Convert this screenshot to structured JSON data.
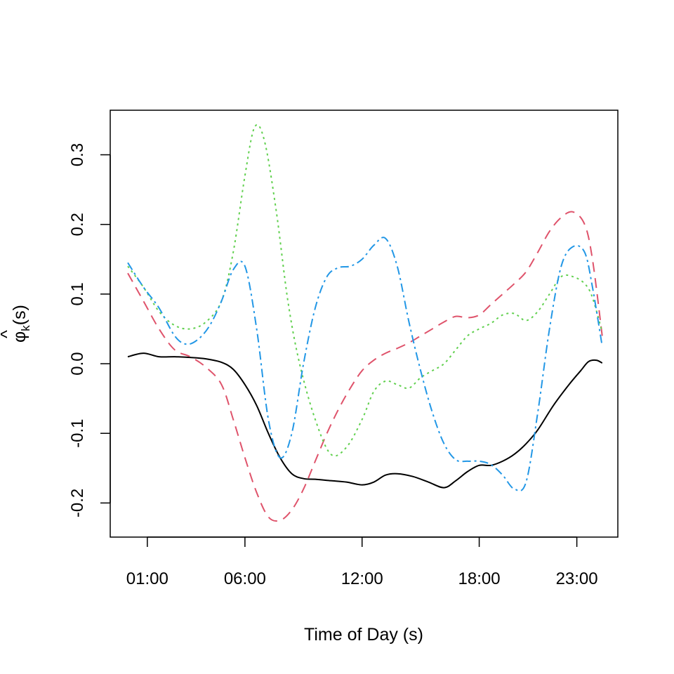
{
  "chart_data": {
    "type": "line",
    "xlabel": "Time of Day (s)",
    "ylabel_symbol": "φ",
    "ylabel_hat": "^",
    "ylabel_subscript": "k",
    "ylabel_suffix": "(s)",
    "xlim": [
      -0.9,
      25.1
    ],
    "ylim": [
      -0.249,
      0.364
    ],
    "x_ticks": [
      {
        "value": 1,
        "label": "01:00"
      },
      {
        "value": 6,
        "label": "06:00"
      },
      {
        "value": 12,
        "label": "12:00"
      },
      {
        "value": 18,
        "label": "18:00"
      },
      {
        "value": 23,
        "label": "23:00"
      }
    ],
    "y_ticks": [
      {
        "value": -0.2,
        "label": "-0.2"
      },
      {
        "value": -0.1,
        "label": "-0.1"
      },
      {
        "value": 0.0,
        "label": "0.0"
      },
      {
        "value": 0.1,
        "label": "0.1"
      },
      {
        "value": 0.2,
        "label": "0.2"
      },
      {
        "value": 0.3,
        "label": "0.3"
      }
    ],
    "grid": false,
    "legend": "none",
    "series": [
      {
        "color": "#000000",
        "dash": "",
        "x": [
          0,
          0.8,
          1.6,
          2.4,
          3.2,
          4.0,
          4.8,
          5.4,
          6.0,
          6.6,
          7.2,
          7.8,
          8.4,
          9.0,
          9.6,
          10.4,
          11.2,
          12.0,
          12.6,
          13.2,
          13.8,
          14.6,
          15.4,
          16.2,
          16.8,
          17.4,
          18.0,
          18.6,
          19.2,
          19.8,
          20.4,
          21.0,
          21.8,
          22.6,
          23.2,
          23.6,
          24.0,
          24.3
        ],
        "y": [
          0.01,
          0.015,
          0.01,
          0.01,
          0.009,
          0.007,
          0.002,
          -0.008,
          -0.03,
          -0.06,
          -0.1,
          -0.135,
          -0.158,
          -0.165,
          -0.166,
          -0.168,
          -0.17,
          -0.174,
          -0.17,
          -0.16,
          -0.158,
          -0.162,
          -0.17,
          -0.178,
          -0.168,
          -0.155,
          -0.146,
          -0.146,
          -0.14,
          -0.13,
          -0.115,
          -0.095,
          -0.06,
          -0.03,
          -0.01,
          0.003,
          0.005,
          0.001
        ]
      },
      {
        "color": "#DF536B",
        "dash": "14,9",
        "x": [
          0,
          0.8,
          1.6,
          2.4,
          3.2,
          4.0,
          4.8,
          5.4,
          6.0,
          6.6,
          7.2,
          7.8,
          8.4,
          9.0,
          9.6,
          10.2,
          10.8,
          11.4,
          12.0,
          12.6,
          13.2,
          13.8,
          14.4,
          15.0,
          15.6,
          16.2,
          16.8,
          17.4,
          18.0,
          18.6,
          19.2,
          19.8,
          20.4,
          21.0,
          21.6,
          22.2,
          22.8,
          23.4,
          23.8,
          24.3
        ],
        "y": [
          0.13,
          0.09,
          0.05,
          0.02,
          0.01,
          -0.005,
          -0.03,
          -0.08,
          -0.135,
          -0.185,
          -0.22,
          -0.225,
          -0.21,
          -0.18,
          -0.14,
          -0.1,
          -0.065,
          -0.035,
          -0.01,
          0.005,
          0.015,
          0.022,
          0.03,
          0.04,
          0.05,
          0.06,
          0.068,
          0.066,
          0.07,
          0.085,
          0.1,
          0.115,
          0.132,
          0.16,
          0.19,
          0.21,
          0.218,
          0.2,
          0.15,
          0.04
        ]
      },
      {
        "color": "#61D04F",
        "dash": "3,5",
        "x": [
          0,
          0.8,
          1.6,
          2.4,
          3.2,
          4.0,
          4.8,
          5.4,
          6.0,
          6.5,
          7.0,
          7.6,
          8.2,
          8.8,
          9.6,
          10.4,
          11.2,
          12.0,
          12.6,
          13.2,
          13.8,
          14.4,
          15.0,
          15.6,
          16.2,
          16.8,
          17.4,
          18.0,
          18.6,
          19.2,
          19.8,
          20.4,
          21.0,
          21.6,
          22.2,
          22.8,
          23.4,
          23.8,
          24.3
        ],
        "y": [
          0.14,
          0.11,
          0.075,
          0.055,
          0.05,
          0.06,
          0.09,
          0.16,
          0.27,
          0.34,
          0.32,
          0.22,
          0.09,
          0.0,
          -0.08,
          -0.13,
          -0.12,
          -0.08,
          -0.04,
          -0.025,
          -0.03,
          -0.035,
          -0.02,
          -0.01,
          0.0,
          0.02,
          0.04,
          0.05,
          0.058,
          0.07,
          0.072,
          0.062,
          0.075,
          0.1,
          0.125,
          0.125,
          0.115,
          0.095,
          0.045
        ]
      },
      {
        "color": "#2297E6",
        "dash": "12,5,3,5",
        "x": [
          0,
          0.8,
          1.6,
          2.4,
          3.0,
          3.6,
          4.2,
          4.8,
          5.4,
          6.0,
          6.6,
          7.2,
          7.8,
          8.4,
          9.0,
          9.6,
          10.2,
          10.8,
          11.4,
          12.0,
          12.6,
          13.2,
          13.8,
          14.4,
          15.0,
          15.6,
          16.2,
          16.8,
          17.4,
          18.0,
          18.6,
          19.2,
          19.8,
          20.4,
          21.0,
          21.6,
          22.2,
          22.8,
          23.4,
          23.8,
          24.3
        ],
        "y": [
          0.145,
          0.11,
          0.08,
          0.04,
          0.028,
          0.035,
          0.055,
          0.09,
          0.135,
          0.14,
          0.05,
          -0.08,
          -0.135,
          -0.1,
          0.0,
          0.08,
          0.125,
          0.138,
          0.14,
          0.15,
          0.17,
          0.18,
          0.14,
          0.06,
          -0.01,
          -0.07,
          -0.115,
          -0.138,
          -0.14,
          -0.14,
          -0.145,
          -0.16,
          -0.18,
          -0.17,
          -0.07,
          0.05,
          0.14,
          0.168,
          0.16,
          0.11,
          0.025
        ]
      }
    ]
  }
}
